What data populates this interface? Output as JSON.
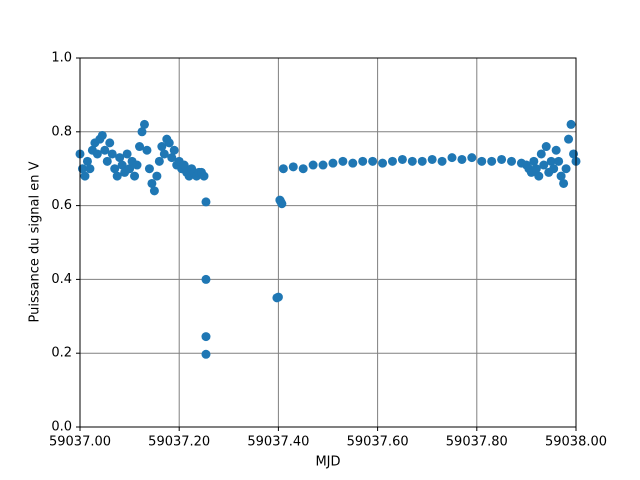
{
  "chart_data": {
    "type": "scatter",
    "x_label": "MJD",
    "y_label": "Puissance du signal en V",
    "color": "#1f77b4",
    "grid": true,
    "xlim": [
      59037.0,
      59038.0
    ],
    "xticks": [
      {
        "value": 59037.0,
        "label": "59037.00"
      },
      {
        "value": 59037.2,
        "label": "59037.20"
      },
      {
        "value": 59037.4,
        "label": "59037.40"
      },
      {
        "value": 59037.6,
        "label": "59037.60"
      },
      {
        "value": 59037.8,
        "label": "59037.80"
      },
      {
        "value": 59038.0,
        "label": "59038.00"
      }
    ],
    "ylim": [
      0,
      1
    ],
    "yticks": [
      {
        "value": 0,
        "label": "0.0"
      },
      0.2,
      0.4,
      0.6,
      0.8,
      {
        "value": 1,
        "label": "1.0"
      }
    ],
    "x": [
      59037.0,
      59037.005,
      59037.01,
      59037.015,
      59037.02,
      59037.025,
      59037.03,
      59037.035,
      59037.04,
      59037.045,
      59037.05,
      59037.055,
      59037.06,
      59037.065,
      59037.07,
      59037.075,
      59037.08,
      59037.085,
      59037.09,
      59037.095,
      59037.1,
      59037.105,
      59037.11,
      59037.115,
      59037.12,
      59037.125,
      59037.13,
      59037.135,
      59037.14,
      59037.145,
      59037.15,
      59037.155,
      59037.16,
      59037.165,
      59037.17,
      59037.175,
      59037.18,
      59037.185,
      59037.19,
      59037.195,
      59037.2,
      59037.205,
      59037.21,
      59037.215,
      59037.22,
      59037.225,
      59037.23,
      59037.235,
      59037.24,
      59037.245,
      59037.25,
      59037.254,
      59037.254,
      59037.254,
      59037.254,
      59037.397,
      59037.4,
      59037.403,
      59037.405,
      59037.407,
      59037.41,
      59037.43,
      59037.45,
      59037.47,
      59037.49,
      59037.51,
      59037.53,
      59037.55,
      59037.57,
      59037.59,
      59037.61,
      59037.63,
      59037.65,
      59037.67,
      59037.69,
      59037.71,
      59037.73,
      59037.75,
      59037.77,
      59037.79,
      59037.81,
      59037.83,
      59037.85,
      59037.87,
      59037.89,
      59037.9,
      59037.905,
      59037.91,
      59037.915,
      59037.92,
      59037.925,
      59037.93,
      59037.935,
      59037.94,
      59037.945,
      59037.95,
      59037.955,
      59037.96,
      59037.965,
      59037.97,
      59037.975,
      59037.98,
      59037.985,
      59037.99,
      59037.995,
      59038.0
    ],
    "values": [
      0.74,
      0.7,
      0.68,
      0.72,
      0.7,
      0.75,
      0.77,
      0.74,
      0.78,
      0.79,
      0.75,
      0.72,
      0.77,
      0.74,
      0.7,
      0.68,
      0.73,
      0.71,
      0.69,
      0.74,
      0.7,
      0.72,
      0.68,
      0.71,
      0.76,
      0.8,
      0.82,
      0.75,
      0.7,
      0.66,
      0.64,
      0.68,
      0.72,
      0.76,
      0.74,
      0.78,
      0.77,
      0.73,
      0.75,
      0.71,
      0.72,
      0.7,
      0.71,
      0.69,
      0.68,
      0.7,
      0.69,
      0.68,
      0.69,
      0.69,
      0.68,
      0.61,
      0.4,
      0.245,
      0.197,
      0.35,
      0.352,
      0.615,
      0.61,
      0.605,
      0.7,
      0.705,
      0.7,
      0.71,
      0.71,
      0.715,
      0.72,
      0.715,
      0.72,
      0.72,
      0.715,
      0.72,
      0.725,
      0.72,
      0.72,
      0.725,
      0.72,
      0.73,
      0.725,
      0.73,
      0.72,
      0.72,
      0.725,
      0.72,
      0.715,
      0.71,
      0.7,
      0.69,
      0.72,
      0.7,
      0.68,
      0.74,
      0.71,
      0.76,
      0.69,
      0.72,
      0.7,
      0.75,
      0.72,
      0.68,
      0.66,
      0.7,
      0.78,
      0.82,
      0.74,
      0.72
    ]
  }
}
